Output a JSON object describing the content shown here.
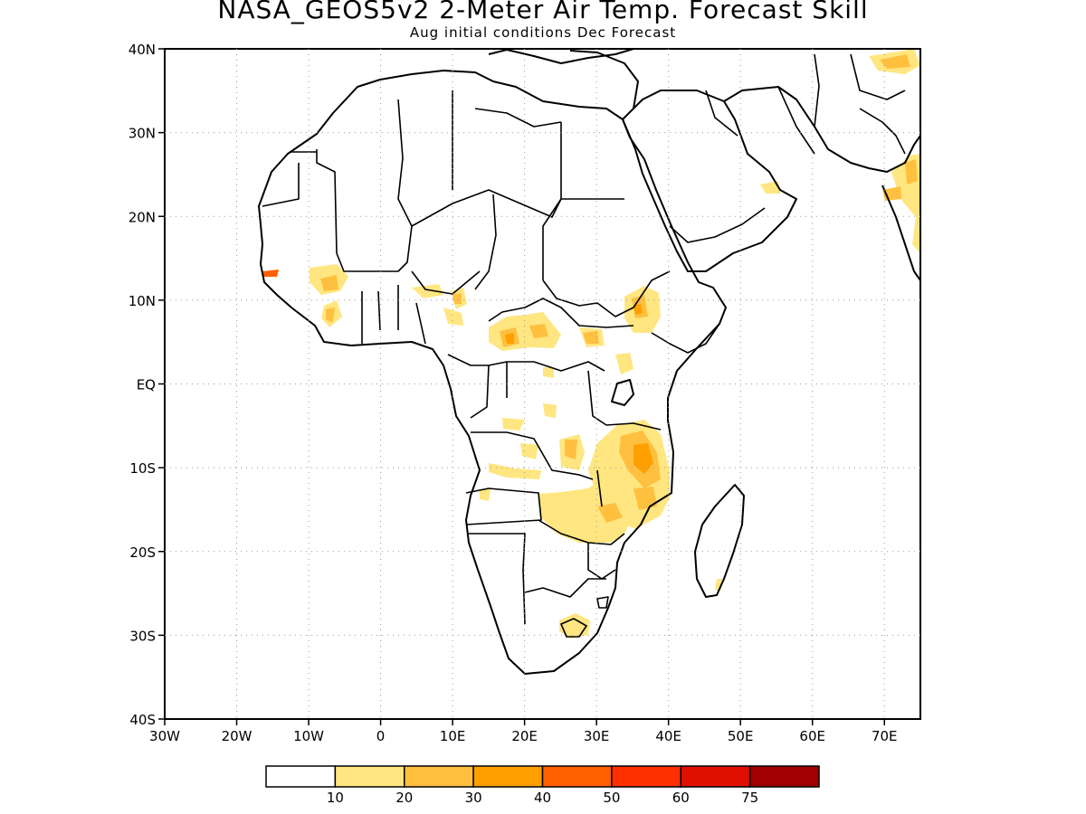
{
  "title": "NASA_GEOS5v2 2-Meter Air Temp. Forecast Skill",
  "subtitle": "Aug initial conditions  Dec Forecast",
  "map": {
    "lon_range": [
      -30,
      75
    ],
    "lat_range": [
      -40,
      40
    ],
    "lat_ticks": [
      {
        "lat": 40,
        "label": "40N"
      },
      {
        "lat": 30,
        "label": "30N"
      },
      {
        "lat": 20,
        "label": "20N"
      },
      {
        "lat": 10,
        "label": "10N"
      },
      {
        "lat": 0,
        "label": "EQ"
      },
      {
        "lat": -10,
        "label": "10S"
      },
      {
        "lat": -20,
        "label": "20S"
      },
      {
        "lat": -30,
        "label": "30S"
      },
      {
        "lat": -40,
        "label": "40S"
      }
    ],
    "lon_ticks": [
      {
        "lon": -30,
        "label": "30W"
      },
      {
        "lon": -20,
        "label": "20W"
      },
      {
        "lon": -10,
        "label": "10W"
      },
      {
        "lon": 0,
        "label": "0"
      },
      {
        "lon": 10,
        "label": "10E"
      },
      {
        "lon": 20,
        "label": "20E"
      },
      {
        "lon": 30,
        "label": "30E"
      },
      {
        "lon": 40,
        "label": "40E"
      },
      {
        "lon": 50,
        "label": "50E"
      },
      {
        "lon": 60,
        "label": "60E"
      },
      {
        "lon": 70,
        "label": "70E"
      }
    ]
  },
  "colorbar": {
    "colors": [
      "#ffffff",
      "#ffe680",
      "#ffc040",
      "#ffa000",
      "#ff6000",
      "#ff3000",
      "#e01000",
      "#a00000"
    ],
    "labels": [
      "10",
      "20",
      "30",
      "40",
      "50",
      "60",
      "75"
    ]
  }
}
